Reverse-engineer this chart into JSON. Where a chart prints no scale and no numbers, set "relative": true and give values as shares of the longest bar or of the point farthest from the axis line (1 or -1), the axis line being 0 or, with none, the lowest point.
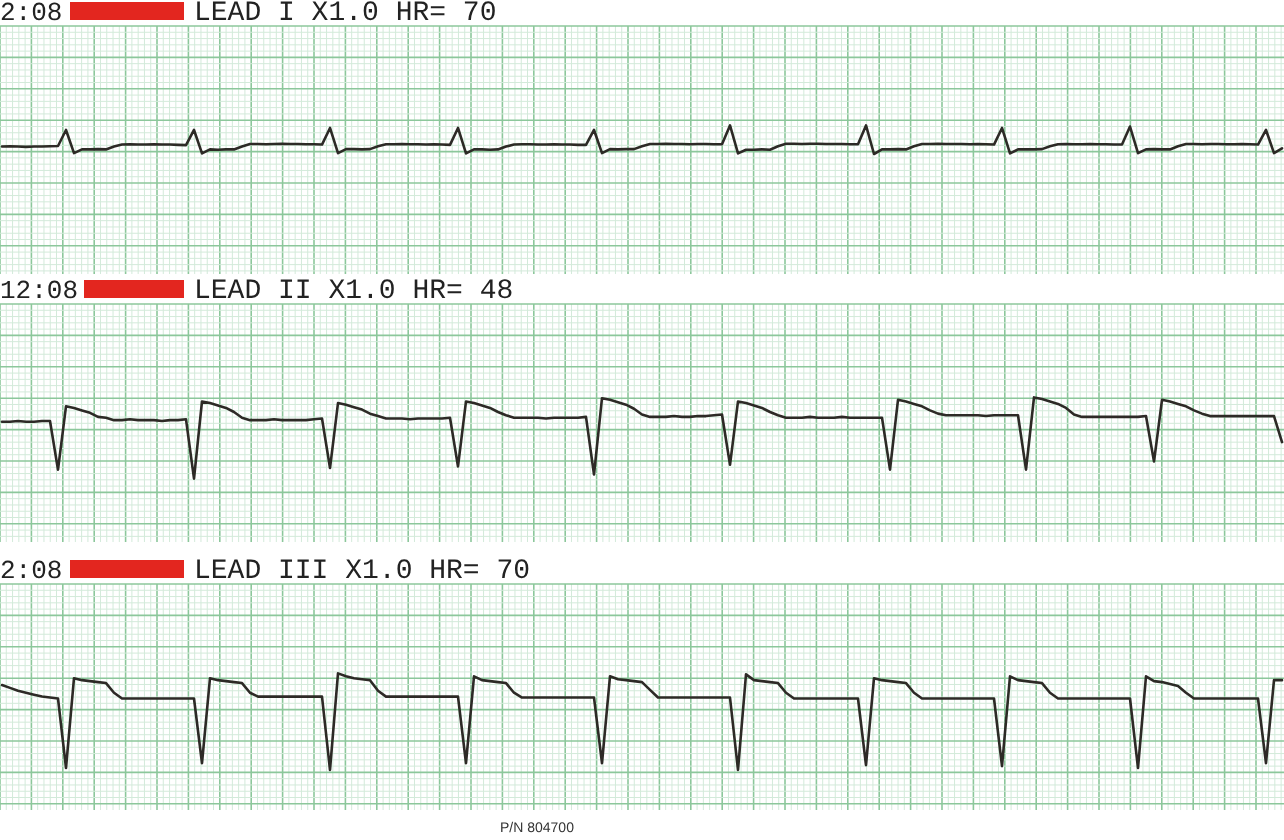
{
  "chart_data": [
    {
      "type": "line",
      "title": "LEAD I X1.0 HR= 70",
      "annotations": [
        "2:08"
      ],
      "relative": true,
      "grid": true,
      "color": "#2d2a26",
      "categories": [
        null,
        null,
        null,
        null,
        null,
        null,
        null,
        null,
        null,
        null,
        null,
        null,
        null,
        null,
        null,
        null,
        null,
        null,
        null,
        null,
        null,
        null,
        null,
        null,
        null,
        null,
        null,
        null,
        null,
        null,
        null,
        null,
        null,
        null,
        null,
        null,
        null,
        null,
        null,
        null,
        null,
        null,
        null,
        null,
        null,
        null,
        null,
        null,
        null,
        null,
        null,
        null,
        null,
        null,
        null,
        null,
        null,
        null,
        null,
        null,
        null,
        null,
        null,
        null,
        null,
        null,
        null,
        null,
        null,
        null,
        null,
        null,
        null,
        null,
        null,
        null,
        null,
        null,
        null,
        null,
        null,
        null,
        null,
        null,
        null,
        null,
        null,
        null,
        null,
        null,
        null,
        null,
        null,
        null,
        null,
        null,
        null,
        null,
        null,
        null,
        null,
        null,
        null,
        null,
        null,
        null,
        null,
        null,
        null,
        null,
        null,
        null,
        null,
        null,
        null,
        null,
        null,
        null,
        null,
        null,
        null,
        null,
        null,
        null,
        null,
        null,
        null,
        null,
        null,
        null,
        null,
        null,
        null,
        null,
        null,
        null,
        null,
        null,
        null,
        null,
        null,
        null,
        null,
        null,
        null,
        null,
        null,
        null,
        null,
        null,
        null,
        null,
        null,
        null,
        null,
        null,
        null,
        null,
        null,
        null,
        null
      ],
      "values": [
        0.26,
        0.27,
        0.26,
        0.25,
        0.26,
        0.26,
        0.27,
        0.28,
        0.84,
        0.03,
        0.16,
        0.16,
        0.17,
        0.16,
        0.26,
        0.33,
        0.34,
        0.33,
        0.33,
        0.34,
        0.33,
        0.33,
        0.32,
        0.31,
        0.84,
        0.02,
        0.16,
        0.15,
        0.16,
        0.16,
        0.26,
        0.35,
        0.35,
        0.34,
        0.35,
        0.36,
        0.35,
        0.35,
        0.34,
        0.34,
        0.33,
        0.91,
        0.03,
        0.17,
        0.17,
        0.16,
        0.17,
        0.27,
        0.34,
        0.34,
        0.35,
        0.34,
        0.34,
        0.33,
        0.34,
        0.33,
        0.32,
        0.91,
        0.02,
        0.16,
        0.16,
        0.15,
        0.16,
        0.26,
        0.33,
        0.34,
        0.34,
        0.33,
        0.33,
        0.34,
        0.33,
        0.33,
        0.32,
        0.32,
        0.84,
        0.03,
        0.17,
        0.16,
        0.17,
        0.17,
        0.27,
        0.35,
        0.35,
        0.36,
        0.35,
        0.35,
        0.34,
        0.35,
        0.35,
        0.34,
        0.34,
        1,
        0.02,
        0.15,
        0.15,
        0.16,
        0.15,
        0.27,
        0.36,
        0.36,
        0.35,
        0.36,
        0.36,
        0.35,
        0.35,
        0.35,
        0.34,
        0.34,
        1,
        0,
        0.16,
        0.16,
        0.17,
        0.16,
        0.27,
        0.35,
        0.35,
        0.36,
        0.35,
        0.35,
        0.35,
        0.34,
        0.35,
        0.34,
        0.33,
        0.91,
        0.02,
        0.16,
        0.16,
        0.16,
        0.17,
        0.27,
        0.34,
        0.35,
        0.34,
        0.34,
        0.35,
        0.34,
        0.34,
        0.33,
        0.33,
        0.96,
        0.03,
        0.16,
        0.17,
        0.16,
        0.16,
        0.27,
        0.35,
        0.35,
        0.34,
        0.35,
        0.35,
        0.34,
        0.34,
        0.35,
        0.34,
        0.33,
        0.84,
        0.03,
        0.2
      ]
    },
    {
      "type": "line",
      "title": "LEAD II X1.0 HR= 48",
      "annotations": [
        "12:08"
      ],
      "relative": true,
      "grid": true,
      "color": "#2d2a26",
      "categories": [
        null,
        null,
        null,
        null,
        null,
        null,
        null,
        null,
        null,
        null,
        null,
        null,
        null,
        null,
        null,
        null,
        null,
        null,
        null,
        null,
        null,
        null,
        null,
        null,
        null,
        null,
        null,
        null,
        null,
        null,
        null,
        null,
        null,
        null,
        null,
        null,
        null,
        null,
        null,
        null,
        null,
        null,
        null,
        null,
        null,
        null,
        null,
        null,
        null,
        null,
        null,
        null,
        null,
        null,
        null,
        null,
        null,
        null,
        null,
        null,
        null,
        null,
        null,
        null,
        null,
        null,
        null,
        null,
        null,
        null,
        null,
        null,
        null,
        null,
        null,
        null,
        null,
        null,
        null,
        null,
        null,
        null,
        null,
        null,
        null,
        null,
        null,
        null,
        null,
        null,
        null,
        null,
        null,
        null,
        null,
        null,
        null,
        null,
        null,
        null,
        null,
        null,
        null,
        null,
        null,
        null,
        null,
        null,
        null,
        null,
        null,
        null,
        null,
        null,
        null,
        null,
        null,
        null,
        null,
        null,
        null,
        null,
        null,
        null,
        null,
        null,
        null,
        null,
        null,
        null,
        null,
        null,
        null,
        null,
        null,
        null,
        null,
        null,
        null,
        null,
        null,
        null,
        null,
        null,
        null,
        null,
        null,
        null,
        null,
        null,
        null,
        null,
        null,
        null,
        null,
        null,
        null,
        null,
        null,
        null,
        null
      ],
      "values": [
        0.7,
        0.7,
        0.71,
        0.7,
        0.7,
        0.71,
        0.71,
        0.11,
        0.89,
        0.87,
        0.84,
        0.81,
        0.76,
        0.75,
        0.72,
        0.72,
        0.73,
        0.72,
        0.72,
        0.72,
        0.71,
        0.72,
        0.72,
        0.73,
        0,
        0.95,
        0.93,
        0.9,
        0.87,
        0.82,
        0.75,
        0.72,
        0.72,
        0.72,
        0.73,
        0.72,
        0.72,
        0.72,
        0.72,
        0.73,
        0.74,
        0.13,
        0.93,
        0.91,
        0.88,
        0.85,
        0.8,
        0.77,
        0.74,
        0.74,
        0.74,
        0.73,
        0.74,
        0.74,
        0.74,
        0.74,
        0.75,
        0.15,
        0.95,
        0.93,
        0.9,
        0.87,
        0.82,
        0.78,
        0.75,
        0.75,
        0.75,
        0.75,
        0.74,
        0.75,
        0.75,
        0.75,
        0.75,
        0.76,
        0.05,
        0.99,
        0.97,
        0.94,
        0.91,
        0.86,
        0.79,
        0.76,
        0.76,
        0.76,
        0.77,
        0.76,
        0.76,
        0.77,
        0.77,
        0.78,
        0.79,
        0.17,
        0.95,
        0.93,
        0.9,
        0.87,
        0.82,
        0.78,
        0.75,
        0.75,
        0.75,
        0.76,
        0.75,
        0.75,
        0.75,
        0.76,
        0.75,
        0.75,
        0.75,
        0.75,
        0.75,
        0.11,
        0.97,
        0.95,
        0.92,
        0.89,
        0.84,
        0.8,
        0.78,
        0.78,
        0.78,
        0.78,
        0.78,
        0.77,
        0.78,
        0.78,
        0.78,
        0.78,
        0.11,
        1,
        0.98,
        0.95,
        0.92,
        0.87,
        0.79,
        0.76,
        0.76,
        0.76,
        0.76,
        0.76,
        0.76,
        0.76,
        0.76,
        0.77,
        0.21,
        0.97,
        0.95,
        0.92,
        0.89,
        0.84,
        0.8,
        0.77,
        0.77,
        0.77,
        0.77,
        0.77,
        0.77,
        0.77,
        0.77,
        0.77,
        0.45
      ]
    },
    {
      "type": "line",
      "title": "LEAD III X1.0 HR= 70",
      "annotations": [
        "2:08",
        "P/N 804700"
      ],
      "relative": true,
      "grid": true,
      "color": "#2d2a26",
      "categories": [
        null,
        null,
        null,
        null,
        null,
        null,
        null,
        null,
        null,
        null,
        null,
        null,
        null,
        null,
        null,
        null,
        null,
        null,
        null,
        null,
        null,
        null,
        null,
        null,
        null,
        null,
        null,
        null,
        null,
        null,
        null,
        null,
        null,
        null,
        null,
        null,
        null,
        null,
        null,
        null,
        null,
        null,
        null,
        null,
        null,
        null,
        null,
        null,
        null,
        null,
        null,
        null,
        null,
        null,
        null,
        null,
        null,
        null,
        null,
        null,
        null,
        null,
        null,
        null,
        null,
        null,
        null,
        null,
        null,
        null,
        null,
        null,
        null,
        null,
        null,
        null,
        null,
        null,
        null,
        null,
        null,
        null,
        null,
        null,
        null,
        null,
        null,
        null,
        null,
        null,
        null,
        null,
        null,
        null,
        null,
        null,
        null,
        null,
        null,
        null,
        null,
        null,
        null,
        null,
        null,
        null,
        null,
        null,
        null,
        null,
        null,
        null,
        null,
        null,
        null,
        null,
        null,
        null,
        null,
        null,
        null,
        null,
        null,
        null,
        null,
        null,
        null,
        null,
        null,
        null,
        null,
        null,
        null,
        null,
        null,
        null,
        null,
        null,
        null,
        null,
        null,
        null,
        null,
        null,
        null,
        null,
        null,
        null,
        null,
        null,
        null,
        null,
        null,
        null,
        null,
        null,
        null,
        null,
        null,
        null,
        null
      ],
      "values": [
        0.88,
        0.85,
        0.82,
        0.8,
        0.78,
        0.76,
        0.75,
        0.74,
        0.02,
        0.95,
        0.93,
        0.92,
        0.91,
        0.9,
        0.8,
        0.74,
        0.74,
        0.74,
        0.74,
        0.74,
        0.74,
        0.74,
        0.74,
        0.74,
        0.74,
        0.07,
        0.95,
        0.93,
        0.92,
        0.91,
        0.9,
        0.8,
        0.76,
        0.76,
        0.76,
        0.76,
        0.76,
        0.76,
        0.76,
        0.76,
        0.76,
        0,
        1,
        0.97,
        0.95,
        0.94,
        0.93,
        0.82,
        0.76,
        0.76,
        0.76,
        0.76,
        0.76,
        0.76,
        0.76,
        0.76,
        0.76,
        0.76,
        0.07,
        0.97,
        0.93,
        0.92,
        0.91,
        0.9,
        0.8,
        0.75,
        0.75,
        0.75,
        0.75,
        0.75,
        0.75,
        0.75,
        0.75,
        0.75,
        0.75,
        0.07,
        0.97,
        0.94,
        0.93,
        0.92,
        0.91,
        0.83,
        0.75,
        0.75,
        0.75,
        0.75,
        0.75,
        0.75,
        0.75,
        0.75,
        0.75,
        0.75,
        0,
        0.99,
        0.93,
        0.92,
        0.91,
        0.9,
        0.8,
        0.74,
        0.74,
        0.74,
        0.74,
        0.74,
        0.74,
        0.74,
        0.74,
        0.74,
        0.05,
        0.95,
        0.93,
        0.92,
        0.91,
        0.9,
        0.8,
        0.74,
        0.74,
        0.74,
        0.74,
        0.74,
        0.74,
        0.74,
        0.74,
        0.74,
        0.74,
        0.04,
        0.97,
        0.93,
        0.92,
        0.91,
        0.9,
        0.8,
        0.74,
        0.74,
        0.74,
        0.74,
        0.74,
        0.74,
        0.74,
        0.74,
        0.74,
        0.74,
        0.02,
        0.97,
        0.92,
        0.91,
        0.89,
        0.87,
        0.8,
        0.74,
        0.74,
        0.74,
        0.74,
        0.74,
        0.74,
        0.74,
        0.74,
        0.74,
        0.07,
        0.93,
        0.93
      ]
    }
  ]
}
